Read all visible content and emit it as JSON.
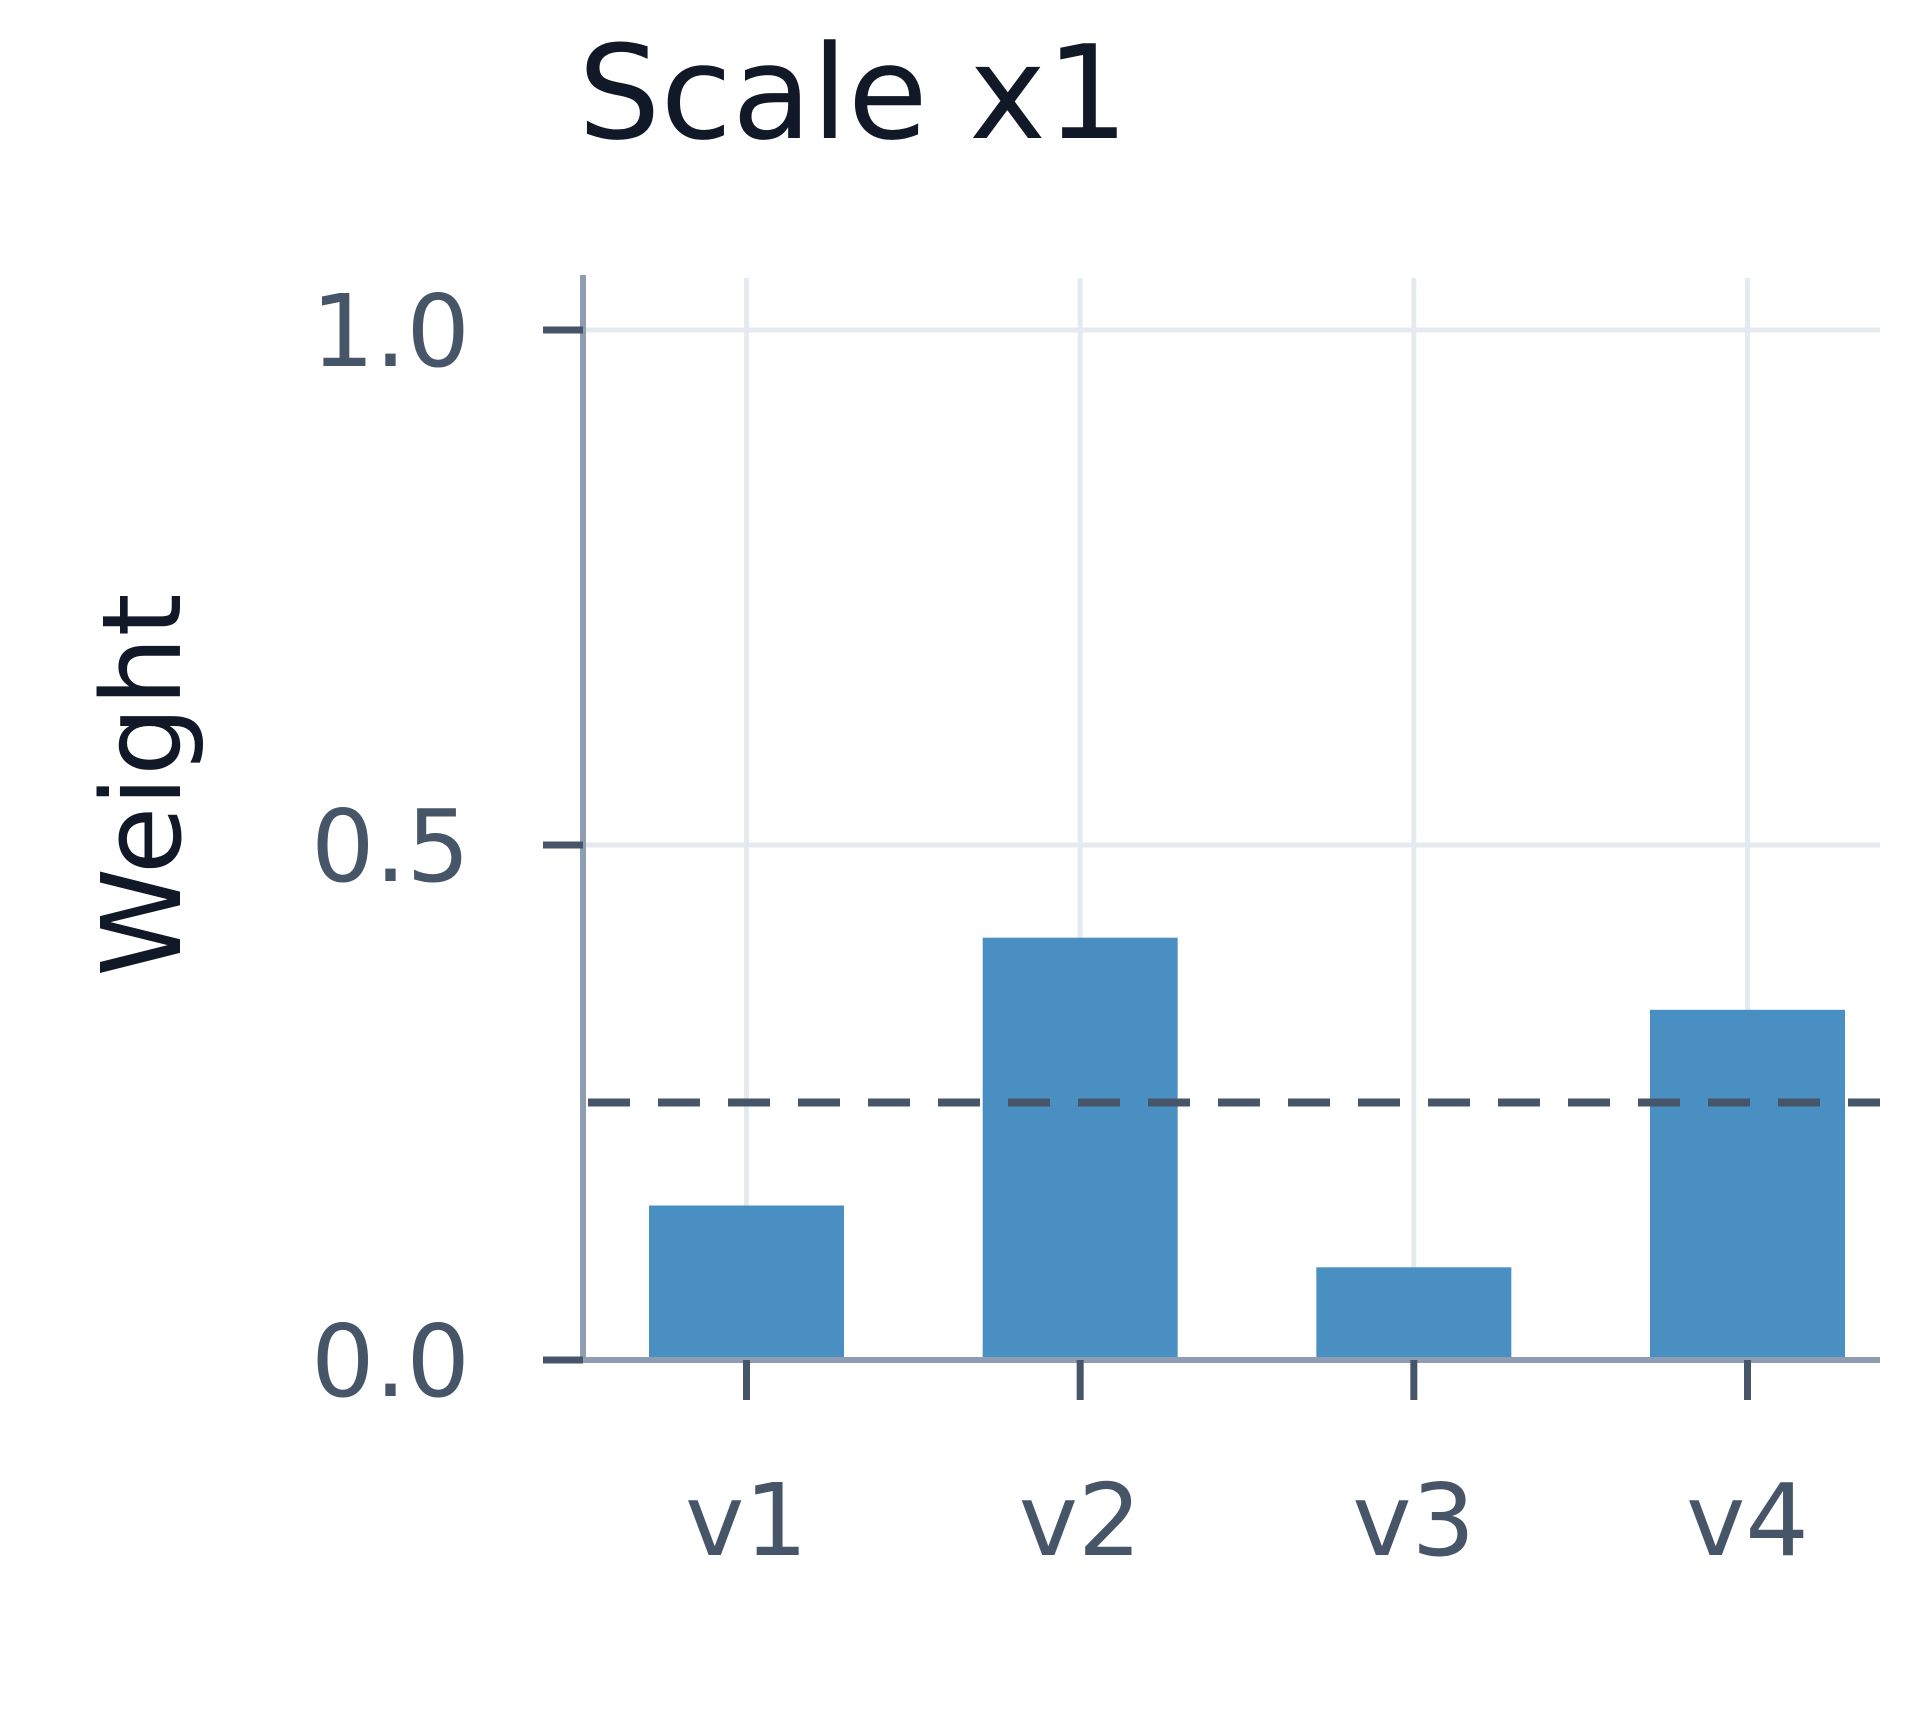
{
  "chart_data": {
    "type": "bar",
    "title": "Scale x1",
    "xlabel": "",
    "ylabel": "Weight",
    "categories": [
      "v1",
      "v2",
      "v3",
      "v4"
    ],
    "values": [
      0.15,
      0.41,
      0.09,
      0.34
    ],
    "ylim": [
      0,
      1.0
    ],
    "yticks": [
      "0.0",
      "0.5",
      "1.0"
    ],
    "reference_line": {
      "value": 0.25,
      "style": "dashed",
      "color": "#475569"
    },
    "grid": true,
    "bar_color": "#4a8fc2",
    "grid_color": "#e5eaf1",
    "axis_color": "#8f9db2",
    "tick_color": "#475569"
  }
}
